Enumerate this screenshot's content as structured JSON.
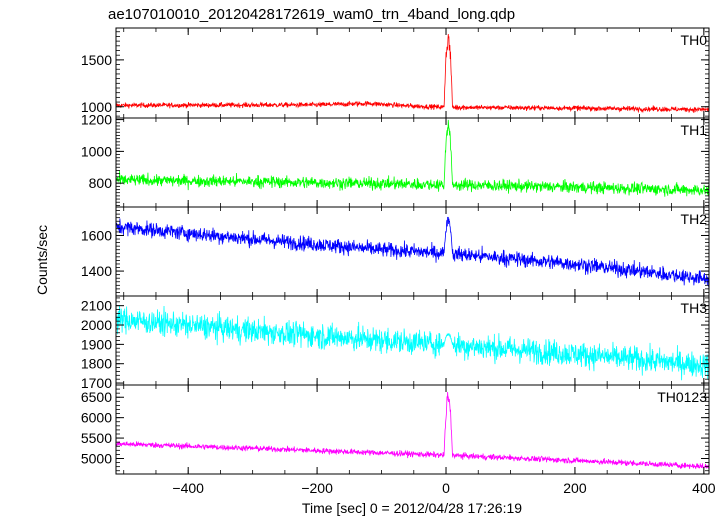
{
  "title": "ae107010010_20120428172619_wam0_trn_4band_long.qdp",
  "xlabel": "Time [sec] 0 = 2012/04/28 17:26:19",
  "ylabel": "Counts/sec",
  "chart_data": [
    {
      "type": "line",
      "panel_label": "TH0",
      "color": "#ff0000",
      "xlim": [
        -512,
        408
      ],
      "ylim": [
        880,
        1840
      ],
      "yticks": [
        1000,
        1500
      ],
      "baseline": [
        [
          -512,
          1015
        ],
        [
          -200,
          1020
        ],
        [
          -120,
          1035
        ],
        [
          -60,
          1010
        ],
        [
          0,
          995
        ],
        [
          200,
          985
        ],
        [
          408,
          970
        ]
      ],
      "noise": 28,
      "spike": {
        "x": [
          -3,
          10
        ],
        "peak": 1830
      }
    },
    {
      "type": "line",
      "panel_label": "TH1",
      "color": "#00ff00",
      "xlim": [
        -512,
        408
      ],
      "ylim": [
        650,
        1210
      ],
      "yticks": [
        800,
        1000,
        1200
      ],
      "baseline": [
        [
          -512,
          820
        ],
        [
          -300,
          810
        ],
        [
          0,
          790
        ],
        [
          200,
          775
        ],
        [
          408,
          755
        ]
      ],
      "noise": 40,
      "spike": {
        "x": [
          -3,
          10
        ],
        "peak": 1200
      }
    },
    {
      "type": "line",
      "panel_label": "TH2",
      "color": "#0000ff",
      "xlim": [
        -512,
        408
      ],
      "ylim": [
        1260,
        1760
      ],
      "yticks": [
        1400,
        1600
      ],
      "baseline": [
        [
          -512,
          1650
        ],
        [
          -300,
          1580
        ],
        [
          -100,
          1520
        ],
        [
          0,
          1500
        ],
        [
          200,
          1440
        ],
        [
          408,
          1355
        ]
      ],
      "noise": 45,
      "spike": {
        "x": [
          -3,
          10
        ],
        "peak": 1710
      }
    },
    {
      "type": "line",
      "panel_label": "TH3",
      "color": "#00ffff",
      "xlim": [
        -512,
        408
      ],
      "ylim": [
        1690,
        2150
      ],
      "yticks": [
        1700,
        1800,
        1900,
        2000,
        2100
      ],
      "baseline": [
        [
          -512,
          2030
        ],
        [
          -300,
          1970
        ],
        [
          -100,
          1920
        ],
        [
          0,
          1900
        ],
        [
          200,
          1850
        ],
        [
          408,
          1790
        ]
      ],
      "noise": 70,
      "spike": {
        "x": [
          -3,
          10
        ],
        "peak": 1960
      }
    },
    {
      "type": "line",
      "panel_label": "TH0123",
      "color": "#ff00ff",
      "xlim": [
        -512,
        408
      ],
      "ylim": [
        4620,
        6800
      ],
      "yticks": [
        5000,
        5500,
        6000,
        6500
      ],
      "baseline": [
        [
          -512,
          5360
        ],
        [
          -300,
          5250
        ],
        [
          0,
          5080
        ],
        [
          200,
          4950
        ],
        [
          408,
          4800
        ]
      ],
      "noise": 75,
      "spike": {
        "x": [
          -3,
          10
        ],
        "peak": 6700
      }
    }
  ],
  "xaxis": {
    "ticks": [
      -400,
      -200,
      0,
      200,
      400
    ],
    "tick_labels": [
      "−400",
      "−200",
      "0",
      "200",
      "400"
    ]
  }
}
